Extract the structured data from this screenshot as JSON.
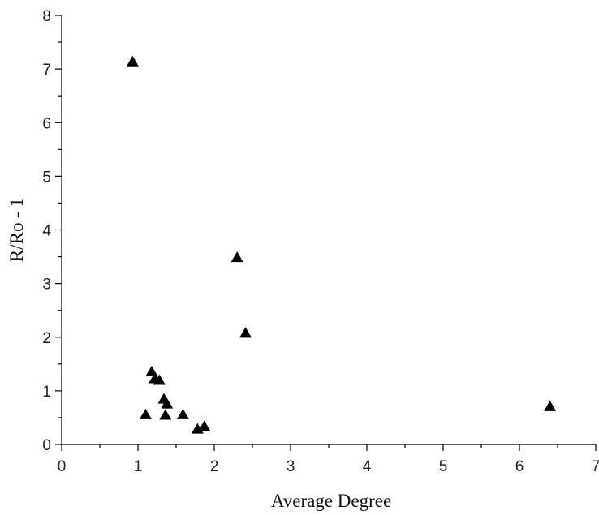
{
  "chart_data": {
    "type": "scatter",
    "title": "",
    "xlabel": "Average Degree",
    "ylabel": "R/Ro - 1",
    "xlim": [
      0,
      7
    ],
    "ylim": [
      0,
      8
    ],
    "x_ticks": [
      "0",
      "1",
      "2",
      "3",
      "4",
      "5",
      "6",
      "7"
    ],
    "y_ticks": [
      "0",
      "1",
      "2",
      "3",
      "4",
      "5",
      "6",
      "7",
      "8"
    ],
    "grid": false,
    "legend": "none",
    "marker": "triangle",
    "marker_color": "#000000",
    "points": [
      {
        "x": 0.93,
        "y": 7.13
      },
      {
        "x": 2.3,
        "y": 3.48
      },
      {
        "x": 2.41,
        "y": 2.07
      },
      {
        "x": 1.18,
        "y": 1.35
      },
      {
        "x": 1.22,
        "y": 1.22
      },
      {
        "x": 1.28,
        "y": 1.19
      },
      {
        "x": 1.34,
        "y": 0.84
      },
      {
        "x": 1.38,
        "y": 0.75
      },
      {
        "x": 1.1,
        "y": 0.55
      },
      {
        "x": 1.36,
        "y": 0.54
      },
      {
        "x": 1.59,
        "y": 0.55
      },
      {
        "x": 1.78,
        "y": 0.28
      },
      {
        "x": 1.87,
        "y": 0.33
      },
      {
        "x": 6.4,
        "y": 0.7
      }
    ]
  }
}
